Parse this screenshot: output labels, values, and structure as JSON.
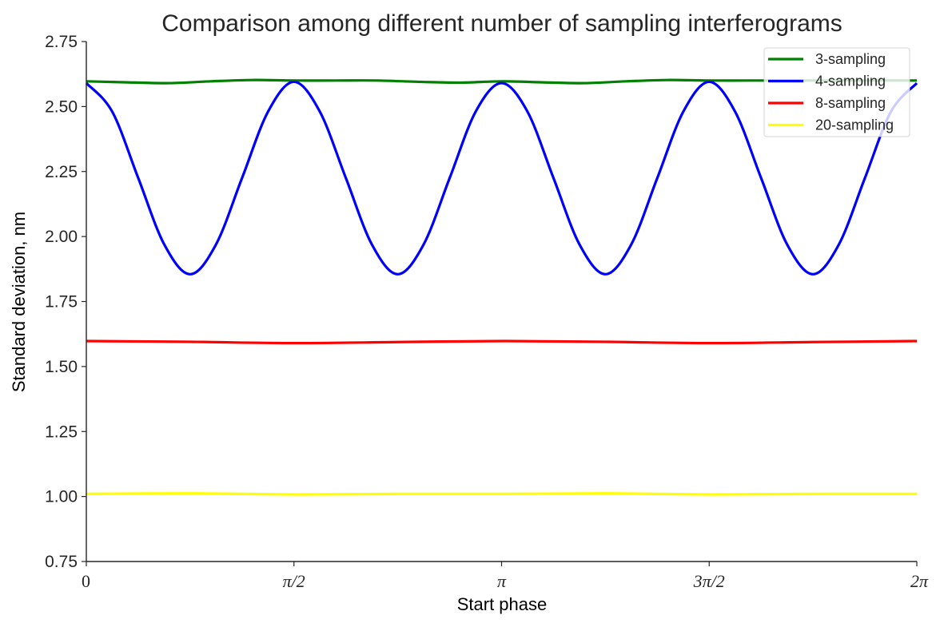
{
  "chart_data": {
    "type": "line",
    "title": "Comparison among different number of sampling interferograms",
    "xlabel": "Start phase",
    "ylabel": "Standard deviation, nm",
    "xlim": [
      0,
      6.2832
    ],
    "ylim": [
      0.75,
      2.75
    ],
    "xticks": [
      {
        "value": 0,
        "label": "0"
      },
      {
        "value": 1.5708,
        "label": "π/2"
      },
      {
        "value": 3.1416,
        "label": "π"
      },
      {
        "value": 4.7124,
        "label": "3π/2"
      },
      {
        "value": 6.2832,
        "label": "2π"
      }
    ],
    "yticks": [
      {
        "value": 0.75,
        "label": "0.75"
      },
      {
        "value": 1.0,
        "label": "1.00"
      },
      {
        "value": 1.25,
        "label": "1.25"
      },
      {
        "value": 1.5,
        "label": "1.50"
      },
      {
        "value": 1.75,
        "label": "1.75"
      },
      {
        "value": 2.0,
        "label": "2.00"
      },
      {
        "value": 2.25,
        "label": "2.25"
      },
      {
        "value": 2.5,
        "label": "2.50"
      },
      {
        "value": 2.75,
        "label": "2.75"
      }
    ],
    "grid": false,
    "legend_position": "top-right",
    "series": [
      {
        "name": "3-sampling",
        "color": "#008000",
        "x": [
          0,
          0.3142,
          0.6283,
          0.9425,
          1.2566,
          1.5708,
          1.885,
          2.1991,
          2.5133,
          2.8274,
          3.1416,
          3.4558,
          3.7699,
          4.0841,
          4.3982,
          4.7124,
          5.0265,
          5.3407,
          5.6549,
          5.969,
          6.2832
        ],
        "values": [
          2.597,
          2.593,
          2.59,
          2.597,
          2.602,
          2.6,
          2.6,
          2.6,
          2.595,
          2.592,
          2.597,
          2.593,
          2.59,
          2.597,
          2.602,
          2.6,
          2.6,
          2.6,
          2.6,
          2.6,
          2.6
        ]
      },
      {
        "name": "4-sampling",
        "color": "#0000ff",
        "x": [
          0,
          0.1963,
          0.3927,
          0.589,
          0.7854,
          0.9817,
          1.1781,
          1.3744,
          1.5708,
          1.7671,
          1.9635,
          2.1598,
          2.3562,
          2.5525,
          2.7489,
          2.9452,
          3.1416,
          3.3379,
          3.5343,
          3.7306,
          3.927,
          4.1233,
          4.3197,
          4.516,
          4.7124,
          4.9087,
          5.1051,
          5.3014,
          5.4978,
          5.6941,
          5.8905,
          6.0868,
          6.2832
        ],
        "values": [
          2.59,
          2.48,
          2.225,
          1.97,
          1.855,
          1.97,
          2.225,
          2.48,
          2.595,
          2.48,
          2.225,
          1.97,
          1.855,
          1.97,
          2.225,
          2.48,
          2.59,
          2.48,
          2.225,
          1.97,
          1.855,
          1.97,
          2.225,
          2.48,
          2.595,
          2.48,
          2.225,
          1.97,
          1.855,
          1.97,
          2.225,
          2.48,
          2.59
        ]
      },
      {
        "name": "8-sampling",
        "color": "#ff0000",
        "x": [
          0,
          0.7854,
          1.5708,
          2.3562,
          3.1416,
          3.927,
          4.7124,
          5.4978,
          6.2832
        ],
        "values": [
          1.598,
          1.595,
          1.59,
          1.594,
          1.598,
          1.595,
          1.59,
          1.594,
          1.598
        ]
      },
      {
        "name": "20-sampling",
        "color": "#ffff00",
        "x": [
          0,
          0.7854,
          1.5708,
          2.3562,
          3.1416,
          3.927,
          4.7124,
          5.4978,
          6.2832
        ],
        "values": [
          1.01,
          1.012,
          1.008,
          1.01,
          1.01,
          1.012,
          1.008,
          1.01,
          1.01
        ]
      }
    ]
  }
}
